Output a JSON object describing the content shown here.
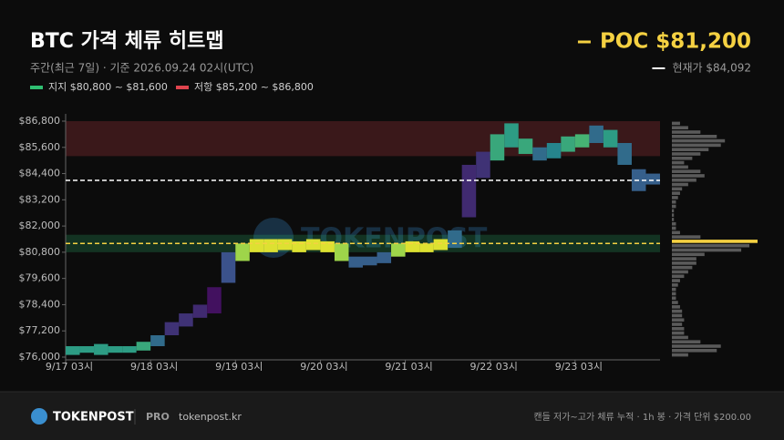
{
  "chart_data": {
    "type": "dwell-heatmap",
    "title": "BTC 가격 체류 히트맵",
    "subtitle": "주간(최근 7일) · 기준 2026.09.24 02시(UTC)",
    "support": {
      "label": "지지 $80,800 ~ $81,600",
      "range": [
        80800,
        81600
      ],
      "color": "#2fbf71"
    },
    "resistance": {
      "label": "저항 $85,200 ~ $86,800",
      "range": [
        85200,
        86800
      ],
      "color": "#e0444e"
    },
    "poc": {
      "label": "POC $81,200",
      "value": 81200,
      "color": "#f5d142"
    },
    "current": {
      "label": "현재가 $84,092",
      "value": 84092,
      "color": "#ffffff"
    },
    "watermark": "TOKENPOST",
    "colormap": [
      "#440154",
      "#3b528b",
      "#21918c",
      "#5ec962",
      "#fde725"
    ],
    "x": [
      0,
      4,
      8,
      12,
      16,
      20,
      24,
      28,
      32,
      36,
      40,
      44,
      48,
      52,
      56,
      60,
      64,
      68,
      72,
      76,
      80,
      84,
      88,
      92,
      96,
      100,
      104,
      108,
      112,
      116,
      120,
      124,
      128,
      132,
      136,
      140,
      144,
      148,
      152,
      156,
      160,
      164
    ],
    "low": [
      76100,
      76200,
      76100,
      76200,
      76200,
      76300,
      76500,
      77000,
      77400,
      77800,
      78000,
      79400,
      80400,
      80800,
      80800,
      80900,
      80800,
      80900,
      80800,
      80400,
      80100,
      80200,
      80300,
      80600,
      80800,
      80800,
      80900,
      81000,
      82400,
      84200,
      85000,
      85600,
      85300,
      85000,
      85100,
      85400,
      85600,
      85800,
      85600,
      84800,
      83600,
      83900
    ],
    "high": [
      76500,
      76500,
      76600,
      76500,
      76500,
      76700,
      77000,
      77600,
      78000,
      78400,
      79200,
      80800,
      81200,
      81400,
      81400,
      81400,
      81300,
      81400,
      81300,
      81200,
      80600,
      80600,
      80800,
      81200,
      81300,
      81200,
      81400,
      81800,
      84800,
      85400,
      86200,
      86700,
      86000,
      85600,
      85800,
      86100,
      86200,
      86600,
      86400,
      85800,
      84600,
      84400
    ],
    "xlim": [
      0,
      168
    ],
    "xticks": [
      {
        "value": 0,
        "label": "9/17 03시"
      },
      {
        "value": 24,
        "label": "9/18 03시"
      },
      {
        "value": 48,
        "label": "9/19 03시"
      },
      {
        "value": 72,
        "label": "9/20 03시"
      },
      {
        "value": 96,
        "label": "9/21 03시"
      },
      {
        "value": 120,
        "label": "9/22 03시"
      },
      {
        "value": 144,
        "label": "9/23 03시"
      }
    ],
    "ylim": [
      76000,
      86800
    ],
    "yticks": [
      {
        "value": 76000,
        "label": "$76,000"
      },
      {
        "value": 77200,
        "label": "$77,200"
      },
      {
        "value": 78400,
        "label": "$78,400"
      },
      {
        "value": 79600,
        "label": "$79,600"
      },
      {
        "value": 80800,
        "label": "$80,800"
      },
      {
        "value": 82000,
        "label": "$82,000"
      },
      {
        "value": 83200,
        "label": "$83,200"
      },
      {
        "value": 84400,
        "label": "$84,400"
      },
      {
        "value": 85600,
        "label": "$85,600"
      },
      {
        "value": 86800,
        "label": "$86,800"
      }
    ],
    "profile": {
      "color": "#5a5a5a",
      "bins": [
        76000,
        76200,
        76400,
        76600,
        76800,
        77000,
        77200,
        77400,
        77600,
        77800,
        78000,
        78200,
        78400,
        78600,
        78800,
        79000,
        79200,
        79400,
        79600,
        79800,
        80000,
        80200,
        80400,
        80600,
        80800,
        81000,
        81200,
        81400,
        81600,
        81800,
        82000,
        82200,
        82400,
        82600,
        82800,
        83000,
        83200,
        83400,
        83600,
        83800,
        84000,
        84200,
        84400,
        84600,
        84800,
        85000,
        85200,
        85400,
        85600,
        85800,
        86000,
        86200,
        86400,
        86600,
        86800
      ],
      "counts": [
        8,
        22,
        24,
        14,
        8,
        6,
        6,
        5,
        6,
        5,
        5,
        4,
        3,
        2,
        2,
        2,
        3,
        4,
        6,
        8,
        10,
        12,
        12,
        16,
        34,
        38,
        42,
        14,
        4,
        2,
        2,
        1,
        1,
        1,
        2,
        2,
        3,
        4,
        5,
        8,
        12,
        16,
        14,
        8,
        6,
        10,
        14,
        18,
        24,
        26,
        22,
        14,
        8,
        4
      ]
    },
    "footer": {
      "brand": "TOKENPOST",
      "tier": "PRO",
      "site": "tokenpost.kr",
      "note": "캔들 저가~고가 체류 누적 · 1h 봉 · 가격 단위 $200.00"
    }
  }
}
